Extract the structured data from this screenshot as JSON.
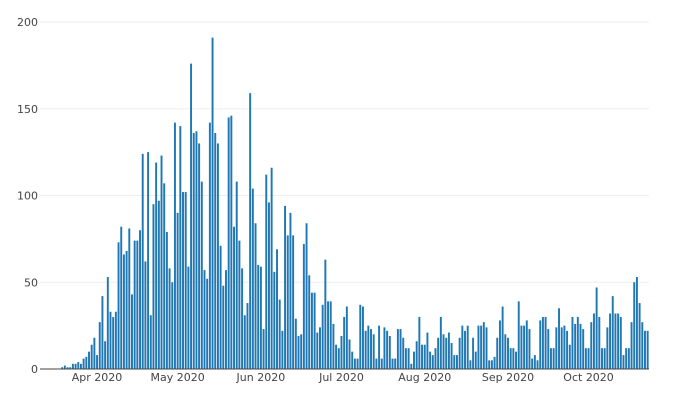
{
  "chart_data": {
    "type": "bar",
    "x_start": "2020-03-12",
    "x_end": "2020-10-23",
    "values": [
      0,
      0,
      0,
      0,
      0,
      0,
      0,
      1,
      2,
      1,
      1,
      3,
      3,
      4,
      3,
      6,
      7,
      10,
      14,
      18,
      8,
      27,
      42,
      16,
      53,
      33,
      30,
      33,
      73,
      82,
      66,
      68,
      81,
      43,
      74,
      74,
      80,
      124,
      62,
      125,
      31,
      95,
      119,
      97,
      123,
      107,
      79,
      58,
      50,
      142,
      90,
      140,
      102,
      102,
      59,
      176,
      136,
      137,
      130,
      108,
      57,
      52,
      142,
      191,
      136,
      130,
      71,
      48,
      57,
      145,
      146,
      82,
      108,
      74,
      58,
      31,
      38,
      159,
      104,
      84,
      60,
      59,
      23,
      112,
      96,
      116,
      56,
      69,
      40,
      22,
      94,
      77,
      90,
      77,
      29,
      19,
      20,
      72,
      84,
      54,
      44,
      44,
      21,
      24,
      37,
      63,
      39,
      39,
      26,
      14,
      12,
      19,
      30,
      36,
      17,
      10,
      6,
      6,
      37,
      36,
      22,
      25,
      23,
      20,
      6,
      25,
      6,
      24,
      22,
      19,
      6,
      6,
      23,
      23,
      18,
      12,
      12,
      3,
      10,
      16,
      30,
      14,
      14,
      21,
      10,
      8,
      12,
      18,
      30,
      20,
      18,
      21,
      15,
      8,
      8,
      18,
      25,
      22,
      25,
      5,
      18,
      10,
      25,
      25,
      27,
      24,
      5,
      5,
      7,
      18,
      28,
      36,
      20,
      18,
      12,
      12,
      10,
      39,
      25,
      25,
      28,
      23,
      6,
      8,
      5,
      28,
      30,
      30,
      23,
      12,
      12,
      24,
      35,
      24,
      25,
      22,
      14,
      30,
      26,
      30,
      26,
      23,
      12,
      12,
      27,
      32,
      47,
      30,
      12,
      12,
      24,
      32,
      42,
      32,
      32,
      30,
      8,
      12,
      12,
      27,
      50,
      53,
      38,
      27,
      22,
      22
    ],
    "x_ticks": [
      "Apr 2020",
      "May 2020",
      "Jun 2020",
      "Jul 2020",
      "Aug 2020",
      "Sep 2020",
      "Oct 2020"
    ],
    "x_tick_dates": [
      "2020-04-01",
      "2020-05-01",
      "2020-06-01",
      "2020-07-01",
      "2020-08-01",
      "2020-09-01",
      "2020-10-01"
    ],
    "y_ticks": [
      0,
      50,
      100,
      150,
      200
    ],
    "ylim": [
      0,
      200
    ],
    "bar_color": "#1f77b4",
    "grid": true,
    "legend": "none",
    "title": "",
    "xlabel": "",
    "ylabel": ""
  }
}
